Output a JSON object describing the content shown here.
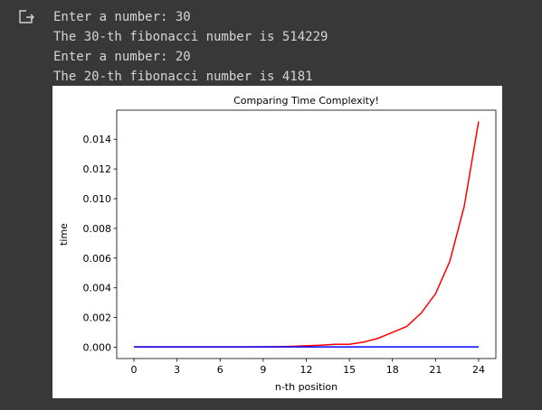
{
  "console": [
    "Enter a number: 30",
    "The 30-th fibonacci number is 514229",
    "Enter a number: 20",
    "The 20-th fibonacci number is 4181"
  ],
  "chart_data": {
    "type": "line",
    "title": "Comparing Time Complexity!",
    "x_label": "n-th position",
    "y_label": "time",
    "x": [
      0,
      1,
      2,
      3,
      4,
      5,
      6,
      7,
      8,
      9,
      10,
      11,
      12,
      13,
      14,
      15,
      16,
      17,
      18,
      19,
      20,
      21,
      22,
      23,
      24
    ],
    "series": [
      {
        "color": "#ff0000",
        "values": [
          2e-05,
          2e-05,
          2e-05,
          2e-05,
          2e-05,
          2e-05,
          2e-05,
          2e-05,
          2e-05,
          3e-05,
          4e-05,
          6e-05,
          0.0001,
          0.00014,
          0.0002,
          0.0002,
          0.00035,
          0.0006,
          0.001,
          0.0014,
          0.0023,
          0.0036,
          0.0058,
          0.0095,
          0.0152
        ]
      },
      {
        "color": "#0000ff",
        "values": [
          2e-05,
          2e-05,
          2e-05,
          2e-05,
          2e-05,
          2e-05,
          2e-05,
          2e-05,
          2e-05,
          2e-05,
          2e-05,
          2e-05,
          2e-05,
          2e-05,
          2e-05,
          2e-05,
          2e-05,
          2e-05,
          2e-05,
          2e-05,
          2e-05,
          2e-05,
          2e-05,
          2e-05,
          2e-05
        ]
      }
    ],
    "xlim": [
      -1.2,
      25.2
    ],
    "xticks": [
      0,
      3,
      6,
      9,
      12,
      15,
      18,
      21,
      24
    ],
    "ylim": [
      -0.00076,
      0.01596
    ],
    "yticks": [
      {
        "value": 0,
        "label": "0.000"
      },
      {
        "value": 0.002,
        "label": "0.002"
      },
      {
        "value": 0.004,
        "label": "0.004"
      },
      {
        "value": 0.006,
        "label": "0.006"
      },
      {
        "value": 0.008,
        "label": "0.008"
      },
      {
        "value": 0.01,
        "label": "0.010"
      },
      {
        "value": 0.012,
        "label": "0.012"
      },
      {
        "value": 0.014,
        "label": "0.014"
      }
    ]
  }
}
